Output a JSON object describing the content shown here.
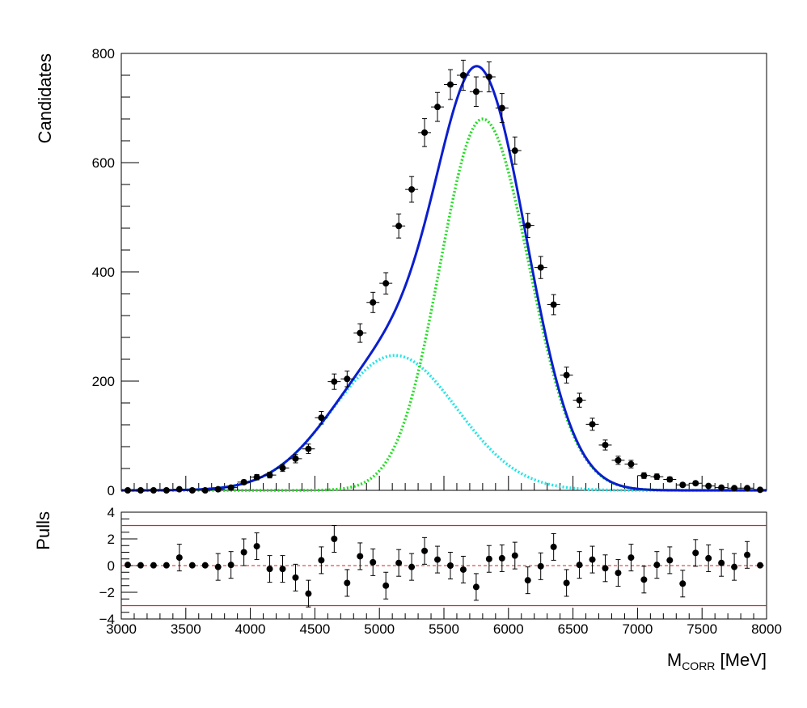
{
  "chart_data": [
    {
      "type": "scatter",
      "panel": "fit",
      "ylabel": "Candidates",
      "xlim": [
        3000,
        8000
      ],
      "ylim": [
        0,
        800
      ],
      "yticks": [
        0,
        200,
        400,
        600,
        800
      ],
      "bin_width": 100,
      "grid": false,
      "colors": {
        "data": "#000000",
        "total": "#0a1ecf",
        "comp1": "#22dd22",
        "comp2": "#22e5e5"
      },
      "series": [
        {
          "kind": "data",
          "x": [
            3050,
            3150,
            3250,
            3350,
            3450,
            3550,
            3650,
            3750,
            3850,
            3950,
            4050,
            4150,
            4250,
            4350,
            4450,
            4550,
            4650,
            4750,
            4850,
            4950,
            5050,
            5150,
            5250,
            5350,
            5450,
            5550,
            5650,
            5750,
            5850,
            5950,
            6050,
            6150,
            6250,
            6350,
            6450,
            6550,
            6650,
            6750,
            6850,
            6950,
            7050,
            7150,
            7250,
            7350,
            7450,
            7550,
            7650,
            7750,
            7850,
            7950
          ],
          "y": [
            0,
            0,
            0,
            0,
            2,
            0,
            0,
            2,
            5,
            15,
            24,
            28,
            41,
            58,
            76,
            133,
            199,
            204,
            288,
            344,
            379,
            484,
            551,
            655,
            702,
            743,
            760,
            730,
            757,
            700,
            622,
            485,
            408,
            340,
            211,
            165,
            121,
            83,
            55,
            48,
            27,
            25,
            20,
            10,
            13,
            8,
            5,
            4,
            4,
            1
          ],
          "yerr": [
            1,
            1,
            1,
            1,
            1.4,
            1,
            1,
            1.4,
            2.2,
            3.9,
            4.9,
            5.3,
            6.4,
            7.6,
            8.7,
            11.5,
            14.1,
            14.3,
            17,
            18.5,
            19.5,
            22,
            23.5,
            25.6,
            26.5,
            27.3,
            27.6,
            27,
            27.5,
            26.5,
            25,
            22,
            20.2,
            18.4,
            14.5,
            12.8,
            11,
            9.1,
            7.4,
            6.9,
            5.2,
            5,
            4.5,
            3.2,
            3.6,
            2.8,
            2.2,
            2,
            2,
            1
          ]
        },
        {
          "kind": "total_fit",
          "style": "solid"
        },
        {
          "kind": "component",
          "style": "dotted",
          "peak_x": 5800,
          "peak_y": 680,
          "sigma_left": 330,
          "sigma_right": 360
        },
        {
          "kind": "component",
          "style": "dotted",
          "peak_x": 5120,
          "peak_y": 247,
          "sigma": 480
        }
      ]
    },
    {
      "type": "scatter",
      "panel": "pulls",
      "ylabel": "Pulls",
      "xlabel_main": "M",
      "xlabel_sub": "CORR",
      "xlabel_unit": " [MeV]",
      "xlim": [
        3000,
        8000
      ],
      "ylim": [
        -4,
        4
      ],
      "yticks": [
        -4,
        -2,
        0,
        2,
        4
      ],
      "xticks": [
        3000,
        3500,
        4000,
        4500,
        5000,
        5500,
        6000,
        6500,
        7000,
        7500,
        8000
      ],
      "reference_lines": {
        "solid": [
          3,
          -3
        ],
        "dashed": [
          0
        ]
      },
      "colors": {
        "points": "#000000",
        "bounds": "#e02020"
      },
      "series": [
        {
          "kind": "pulls",
          "x": [
            3050,
            3150,
            3250,
            3350,
            3450,
            3550,
            3650,
            3750,
            3850,
            3950,
            4050,
            4150,
            4250,
            4350,
            4450,
            4550,
            4650,
            4750,
            4850,
            4950,
            5050,
            5150,
            5250,
            5350,
            5450,
            5550,
            5650,
            5750,
            5850,
            5950,
            6050,
            6150,
            6250,
            6350,
            6450,
            6550,
            6650,
            6750,
            6850,
            6950,
            7050,
            7150,
            7250,
            7350,
            7450,
            7550,
            7650,
            7750,
            7850,
            7950
          ],
          "y": [
            0.05,
            0.02,
            0.02,
            0.02,
            0.6,
            0.02,
            0.02,
            -0.1,
            0.05,
            1.0,
            1.45,
            -0.25,
            -0.25,
            -0.9,
            -2.1,
            0.4,
            2.0,
            -1.3,
            0.7,
            0.25,
            -1.5,
            0.2,
            -0.1,
            1.1,
            0.45,
            0.0,
            -0.3,
            -1.6,
            0.5,
            0.55,
            0.75,
            -1.1,
            -0.05,
            1.4,
            -1.3,
            0.05,
            0.45,
            -0.2,
            -0.55,
            0.6,
            -1.05,
            0.05,
            0.4,
            -1.35,
            0.95,
            0.55,
            0.2,
            -0.1,
            0.8,
            0.02
          ],
          "yerr": [
            0,
            0,
            0,
            0,
            1,
            0,
            0,
            1,
            1,
            1,
            1,
            1,
            1,
            1,
            1,
            1,
            1,
            1,
            1,
            1,
            1,
            1,
            1,
            1,
            1,
            1,
            1,
            1,
            1,
            1,
            1,
            1,
            1,
            1,
            1,
            1,
            1,
            1,
            1,
            1,
            1,
            1,
            1,
            1,
            1,
            1,
            1,
            1,
            1,
            0
          ]
        }
      ]
    }
  ]
}
